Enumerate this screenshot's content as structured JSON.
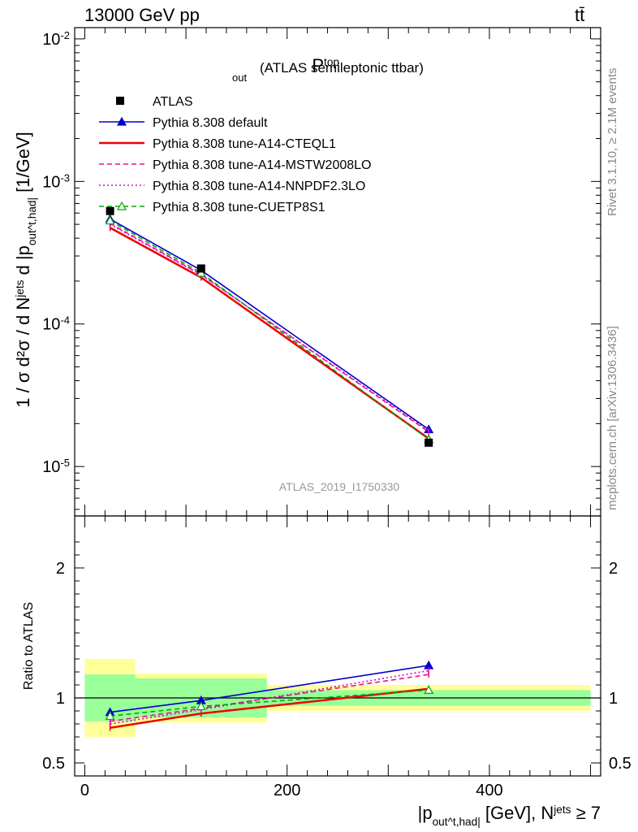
{
  "header": {
    "left": "13000 GeV pp",
    "right": "tt̄"
  },
  "side_labels": {
    "rivet": "Rivet 3.1.10, ≥ 2.1M events",
    "mcplots": "mcplots.cern.ch [arXiv:1306.3436]"
  },
  "chart_data": [
    {
      "type": "line",
      "title": "P_out^top (ATLAS semileptonic ttbar)",
      "title_main": "P",
      "title_sup": "top",
      "title_sub": "out",
      "title_rest": " (ATLAS semileptonic ttbar)",
      "ylabel": "1 / σ d²σ / d N^jets d |p_out^t,had| [1/GeV]",
      "yscale": "log",
      "ylim": [
        4.5e-06,
        0.012
      ],
      "xlim": [
        -10,
        510
      ],
      "y_tick_labels": [
        "10^-5",
        "10^-4",
        "10^-3",
        "10^-2"
      ],
      "watermark": "ATLAS_2019_I1750330",
      "legend_position": "top-left",
      "legend": [
        "ATLAS",
        "Pythia 8.308 default",
        "Pythia 8.308 tune-A14-CTEQL1",
        "Pythia 8.308 tune-A14-MSTW2008LO",
        "Pythia 8.308 tune-A14-NNPDF2.3LO",
        "Pythia 8.308 tune-CUETP8S1"
      ],
      "x": [
        25,
        115,
        340
      ],
      "data": {
        "name": "ATLAS",
        "values": [
          0.00062,
          0.000245,
          1.47e-05
        ],
        "x_bins": [
          [
            0,
            50
          ],
          [
            50,
            180
          ],
          [
            180,
            500
          ]
        ],
        "rel_err_inner": [
          0.18,
          0.15,
          0.06
        ],
        "rel_err_outer": [
          0.3,
          0.19,
          0.1
        ]
      },
      "series": [
        {
          "name": "Pythia 8.308 default",
          "values": [
            0.000545,
            0.000238,
            1.82e-05
          ],
          "color": "#0000cc",
          "style": "solid",
          "marker": "filled-triangle"
        },
        {
          "name": "Pythia 8.308 tune-A14-CTEQL1",
          "values": [
            0.000473,
            0.000212,
            1.57e-05
          ],
          "color": "#ee0000",
          "style": "solid",
          "marker": "none"
        },
        {
          "name": "Pythia 8.308 tune-A14-MSTW2008LO",
          "values": [
            0.000508,
            0.000222,
            1.75e-05
          ],
          "color": "#ee1188",
          "style": "dashed",
          "marker": "none"
        },
        {
          "name": "Pythia 8.308 tune-A14-NNPDF2.3LO",
          "values": [
            0.0005,
            0.000221,
            1.78e-05
          ],
          "color": "#dd00dd",
          "style": "dotted",
          "marker": "none"
        },
        {
          "name": "Pythia 8.308 tune-CUETP8S1",
          "values": [
            0.000531,
            0.000228,
            1.55e-05
          ],
          "color": "#00aa00",
          "style": "dashed",
          "marker": "open-triangle"
        }
      ]
    },
    {
      "type": "line",
      "ylabel": "Ratio to ATLAS",
      "ylim": [
        0.4,
        2.4
      ],
      "y_ticks": [
        0.5,
        1,
        2
      ],
      "y_tick_labels": [
        "0.5",
        "1",
        "2"
      ],
      "xlabel": "|p_out^t,had| [GeV], N^jets ≥ 7",
      "x_ticks": [
        0,
        200,
        400
      ],
      "x_tick_labels": [
        "0",
        "200",
        "400"
      ],
      "x": [
        25,
        115,
        340
      ],
      "series": [
        {
          "name": "Pythia 8.308 default",
          "values": [
            0.89,
            0.98,
            1.25
          ]
        },
        {
          "name": "Pythia 8.308 tune-A14-CTEQL1",
          "values": [
            0.77,
            0.88,
            1.07
          ]
        },
        {
          "name": "Pythia 8.308 tune-A14-MSTW2008LO",
          "values": [
            0.82,
            0.92,
            1.18
          ]
        },
        {
          "name": "Pythia 8.308 tune-A14-NNPDF2.3LO",
          "values": [
            0.8,
            0.91,
            1.21
          ]
        },
        {
          "name": "Pythia 8.308 tune-CUETP8S1",
          "values": [
            0.86,
            0.935,
            1.06
          ]
        }
      ]
    }
  ]
}
